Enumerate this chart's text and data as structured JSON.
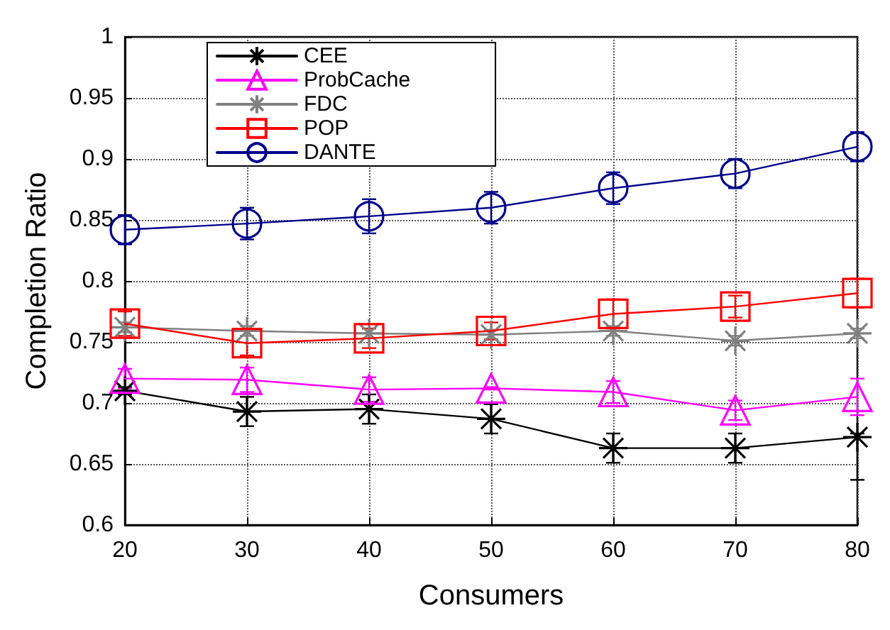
{
  "chart_data": {
    "type": "line",
    "xlabel": "Consumers",
    "ylabel": "Completion Ratio",
    "x": [
      20,
      30,
      40,
      50,
      60,
      70,
      80
    ],
    "xlim": [
      20,
      80
    ],
    "xticks": [
      20,
      30,
      40,
      50,
      60,
      70,
      80
    ],
    "ylim": [
      0.6,
      1
    ],
    "yticks": [
      0.6,
      0.65,
      0.7,
      0.75,
      0.8,
      0.85,
      0.9,
      0.95,
      1
    ],
    "grid": true,
    "legend": "top left",
    "line_style": "solid",
    "series": [
      {
        "name": "CEE",
        "color": "#000000",
        "marker": "cross",
        "values": [
          0.71,
          0.693,
          0.695,
          0.687,
          0.663,
          0.663,
          0.672
        ],
        "errors": [
          0.003,
          0.012,
          0.012,
          0.012,
          0.012,
          0.012,
          [
            0.637,
            0.675
          ]
        ]
      },
      {
        "name": "ProbCache",
        "color": "#ff00ff",
        "marker": "triangle",
        "values": [
          0.72,
          0.719,
          0.711,
          0.712,
          0.709,
          0.694,
          0.705
        ],
        "errors": [
          0.008,
          0.01,
          0.01,
          0.001,
          0.009,
          0.008,
          0.015
        ]
      },
      {
        "name": "FDC",
        "color": "#808080",
        "marker": "cross",
        "values": [
          0.762,
          0.759,
          0.757,
          0.756,
          0.759,
          0.751,
          0.757
        ],
        "errors": [
          0.004,
          0.004,
          0.004,
          0.004,
          0.004,
          0.004,
          0.004
        ]
      },
      {
        "name": "POP",
        "color": "#ff0000",
        "marker": "square",
        "values": [
          0.765,
          0.749,
          0.753,
          0.759,
          0.773,
          0.779,
          0.79
        ],
        "errors": [
          0.01,
          0.01,
          0.008,
          0.007,
          0.012,
          0.009,
          0.012
        ]
      },
      {
        "name": "DANTE",
        "color": "#00008b",
        "marker": "circle",
        "values": [
          0.842,
          0.847,
          0.853,
          0.86,
          0.876,
          0.888,
          0.91
        ],
        "errors": [
          0.012,
          0.013,
          0.014,
          0.013,
          0.013,
          0.012,
          0.012
        ]
      }
    ]
  }
}
